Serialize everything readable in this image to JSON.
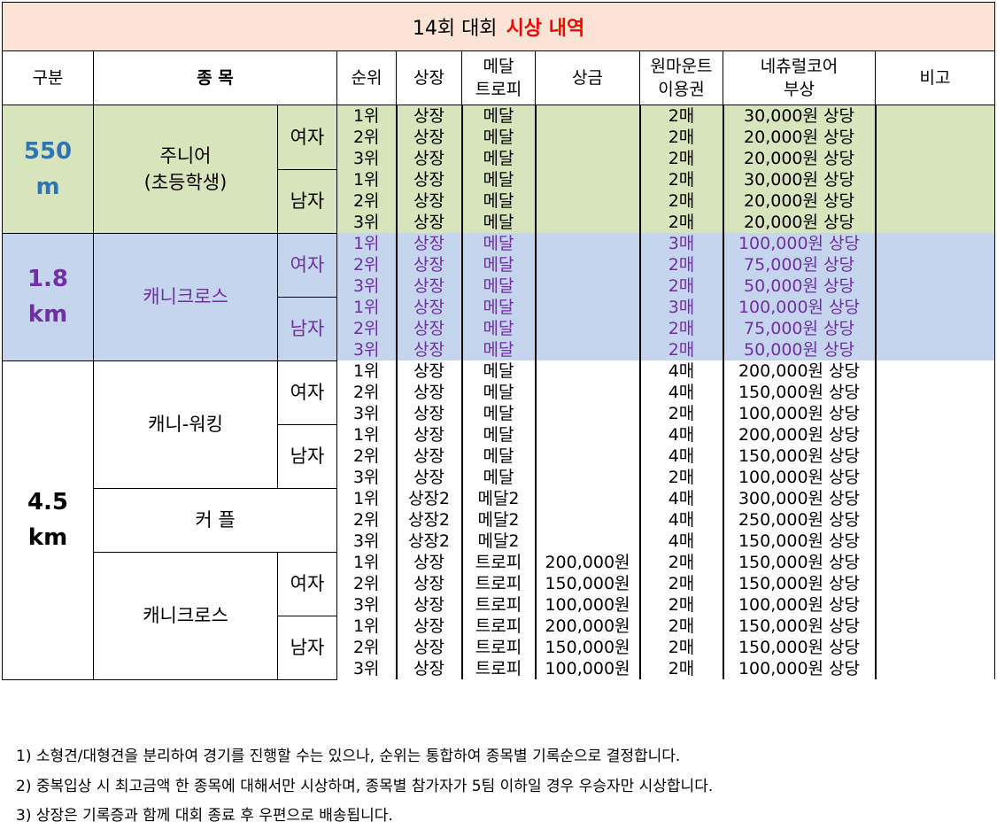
{
  "title": {
    "prefix": "14회 대회",
    "accent": "시상 내역"
  },
  "header": {
    "division": "구분",
    "event": "종 목",
    "rank": "순위",
    "certificate": "상장",
    "medal_line1": "메달",
    "medal_line2": "트로피",
    "prize": "상금",
    "pass_line1": "원마운트",
    "pass_line2": "이용권",
    "extra_line1": "네츄럴코어",
    "extra_line2": "부상",
    "note": "비고"
  },
  "divisions": {
    "d550": {
      "line1": "550",
      "line2": "m"
    },
    "d18": {
      "line1": "1.8",
      "line2": "km"
    },
    "d45": {
      "line1": "4.5",
      "line2": "km"
    }
  },
  "events": {
    "junior": {
      "line1": "주니어",
      "line2": "(초등학생)"
    },
    "canicross": "캐니크로스",
    "caniwalking": "캐니-워킹",
    "couple": "커 플"
  },
  "genders": {
    "female": "여자",
    "male": "남자"
  },
  "rows": [
    {
      "rank": "1위",
      "cert": "상장",
      "medal": "메달",
      "prize": "",
      "pass": "2매",
      "extra": "30,000원 상당"
    },
    {
      "rank": "2위",
      "cert": "상장",
      "medal": "메달",
      "prize": "",
      "pass": "2매",
      "extra": "20,000원 상당"
    },
    {
      "rank": "3위",
      "cert": "상장",
      "medal": "메달",
      "prize": "",
      "pass": "2매",
      "extra": "20,000원 상당"
    },
    {
      "rank": "1위",
      "cert": "상장",
      "medal": "메달",
      "prize": "",
      "pass": "2매",
      "extra": "30,000원 상당"
    },
    {
      "rank": "2위",
      "cert": "상장",
      "medal": "메달",
      "prize": "",
      "pass": "2매",
      "extra": "20,000원 상당"
    },
    {
      "rank": "3위",
      "cert": "상장",
      "medal": "메달",
      "prize": "",
      "pass": "2매",
      "extra": "20,000원 상당"
    },
    {
      "rank": "1위",
      "cert": "상장",
      "medal": "메달",
      "prize": "",
      "pass": "3매",
      "extra": "100,000원 상당"
    },
    {
      "rank": "2위",
      "cert": "상장",
      "medal": "메달",
      "prize": "",
      "pass": "2매",
      "extra": "75,000원 상당"
    },
    {
      "rank": "3위",
      "cert": "상장",
      "medal": "메달",
      "prize": "",
      "pass": "2매",
      "extra": "50,000원 상당"
    },
    {
      "rank": "1위",
      "cert": "상장",
      "medal": "메달",
      "prize": "",
      "pass": "3매",
      "extra": "100,000원 상당"
    },
    {
      "rank": "2위",
      "cert": "상장",
      "medal": "메달",
      "prize": "",
      "pass": "2매",
      "extra": "75,000원 상당"
    },
    {
      "rank": "3위",
      "cert": "상장",
      "medal": "메달",
      "prize": "",
      "pass": "2매",
      "extra": "50,000원 상당"
    },
    {
      "rank": "1위",
      "cert": "상장",
      "medal": "메달",
      "prize": "",
      "pass": "4매",
      "extra": "200,000원 상당"
    },
    {
      "rank": "2위",
      "cert": "상장",
      "medal": "메달",
      "prize": "",
      "pass": "4매",
      "extra": "150,000원 상당"
    },
    {
      "rank": "3위",
      "cert": "상장",
      "medal": "메달",
      "prize": "",
      "pass": "2매",
      "extra": "100,000원 상당"
    },
    {
      "rank": "1위",
      "cert": "상장",
      "medal": "메달",
      "prize": "",
      "pass": "4매",
      "extra": "200,000원 상당"
    },
    {
      "rank": "2위",
      "cert": "상장",
      "medal": "메달",
      "prize": "",
      "pass": "4매",
      "extra": "150,000원 상당"
    },
    {
      "rank": "3위",
      "cert": "상장",
      "medal": "메달",
      "prize": "",
      "pass": "2매",
      "extra": "100,000원 상당"
    },
    {
      "rank": "1위",
      "cert": "상장2",
      "medal": "메달2",
      "prize": "",
      "pass": "4매",
      "extra": "300,000원 상당"
    },
    {
      "rank": "2위",
      "cert": "상장2",
      "medal": "메달2",
      "prize": "",
      "pass": "4매",
      "extra": "250,000원 상당"
    },
    {
      "rank": "3위",
      "cert": "상장2",
      "medal": "메달2",
      "prize": "",
      "pass": "4매",
      "extra": "150,000원 상당"
    },
    {
      "rank": "1위",
      "cert": "상장",
      "medal": "트로피",
      "prize": "200,000원",
      "pass": "2매",
      "extra": "150,000원 상당"
    },
    {
      "rank": "2위",
      "cert": "상장",
      "medal": "트로피",
      "prize": "150,000원",
      "pass": "2매",
      "extra": "150,000원 상당"
    },
    {
      "rank": "3위",
      "cert": "상장",
      "medal": "트로피",
      "prize": "100,000원",
      "pass": "2매",
      "extra": "100,000원 상당"
    },
    {
      "rank": "1위",
      "cert": "상장",
      "medal": "트로피",
      "prize": "200,000원",
      "pass": "2매",
      "extra": "150,000원 상당"
    },
    {
      "rank": "2위",
      "cert": "상장",
      "medal": "트로피",
      "prize": "150,000원",
      "pass": "2매",
      "extra": "150,000원 상당"
    },
    {
      "rank": "3위",
      "cert": "상장",
      "medal": "트로피",
      "prize": "100,000원",
      "pass": "2매",
      "extra": "100,000원 상당"
    }
  ],
  "notes": [
    "1) 소형견/대형견을 분리하여 경기를 진행할 수는 있으나, 순위는 통합하여 종목별 기록순으로 결정합니다.",
    "2) 중복입상 시 최고금액 한 종목에 대해서만 시상하며, 종목별 참가자가 5팀 이하일 경우 우승자만 시상합니다.",
    "3) 상장은 기록증과 함께 대회 종료 후 우편으로 배송됩니다."
  ],
  "colors": {
    "title_bg": "#fbe4d5",
    "title_accent": "#ff0000",
    "green_bg": "#d8e4bc",
    "blue_bg": "#c5d5ee",
    "blue_text": "#2e75b6",
    "purple_text": "#7030a0"
  }
}
